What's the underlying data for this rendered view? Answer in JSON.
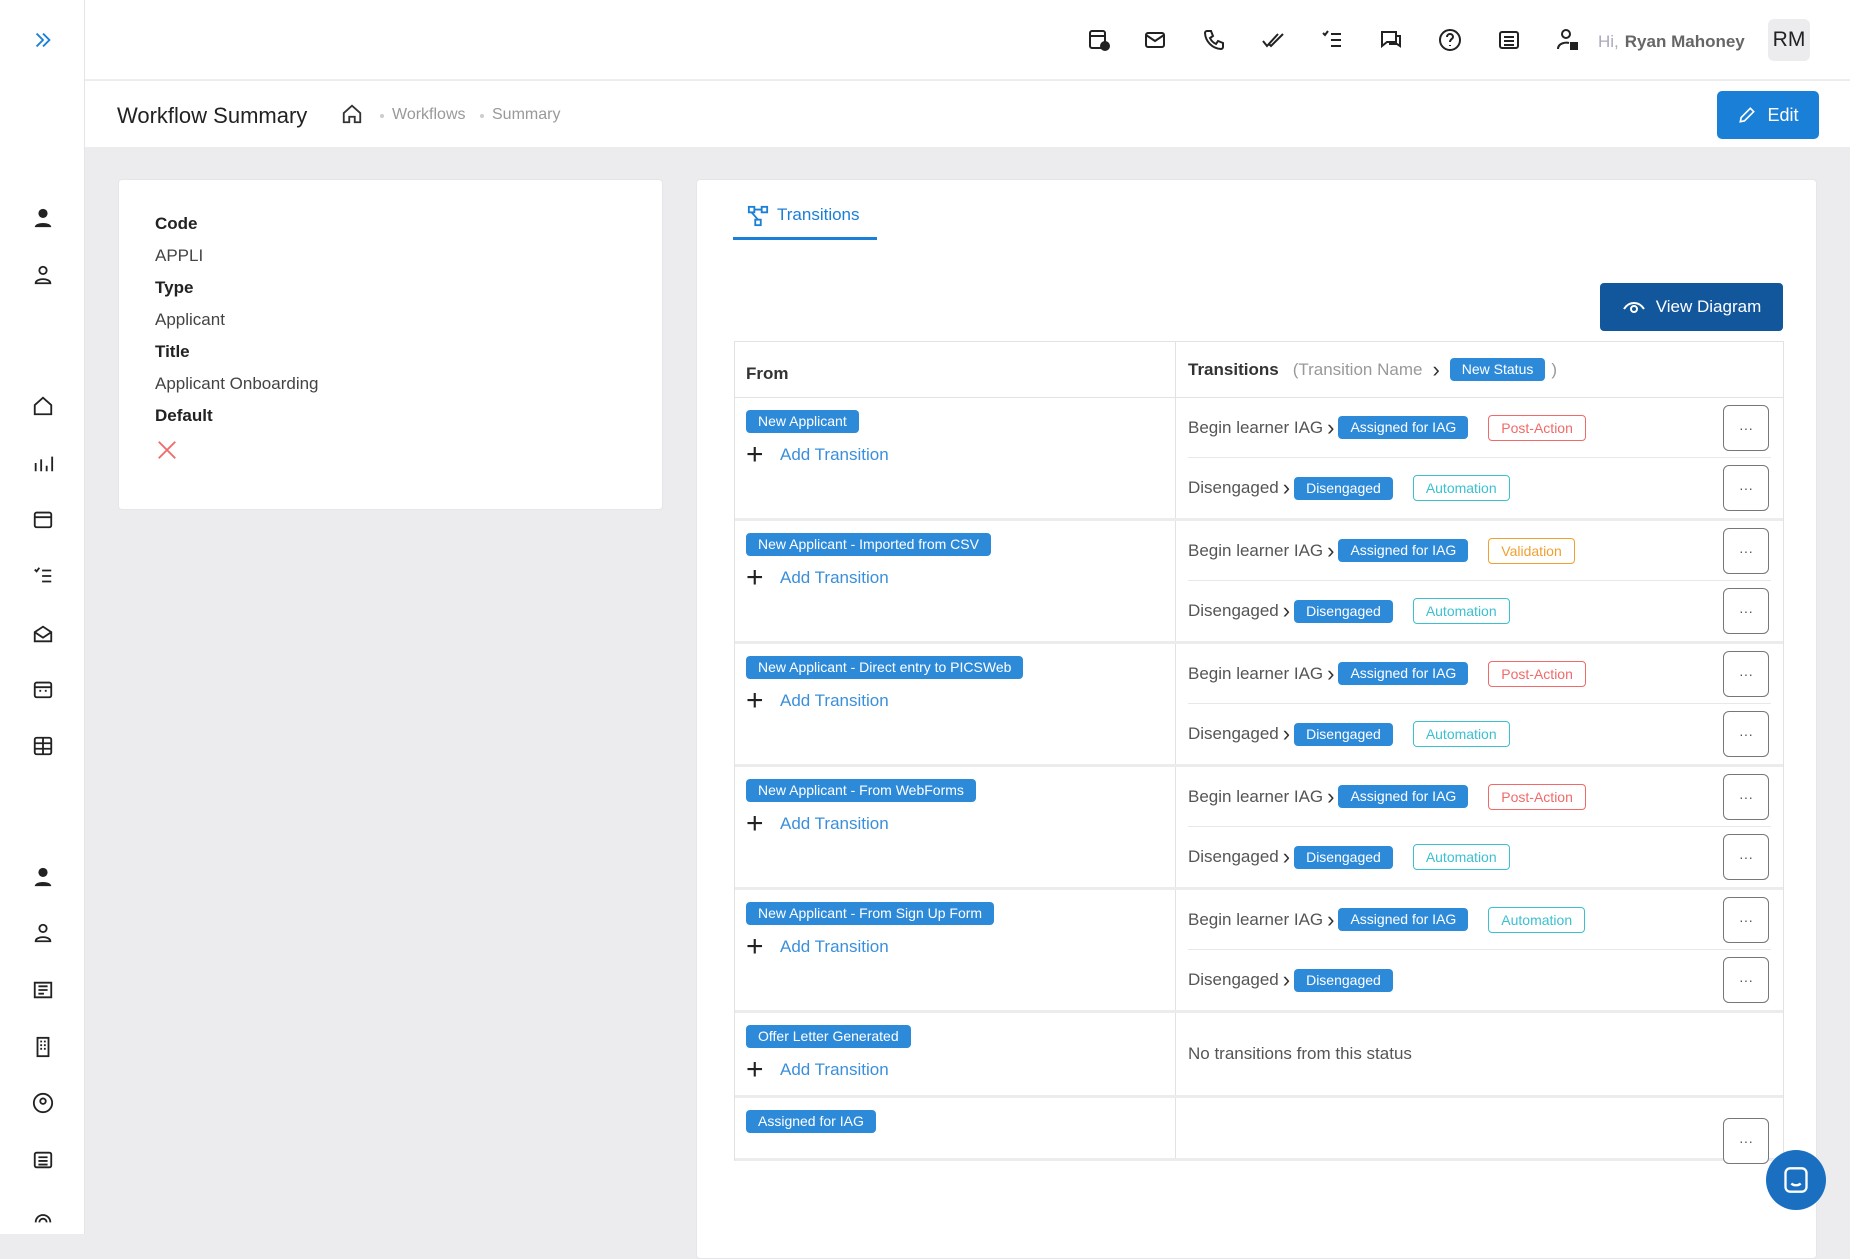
{
  "header": {
    "greeting": "Hi,",
    "user_name": "Ryan Mahoney",
    "avatar_initials": "RM",
    "icons": [
      "calendar-add-icon",
      "mail-icon",
      "phone-icon",
      "double-check-icon",
      "checklist-icon",
      "chat-icon",
      "help-icon",
      "news-icon",
      "user-lock-icon"
    ]
  },
  "page": {
    "title": "Workflow Summary",
    "breadcrumb": [
      "Workflows",
      "Summary"
    ],
    "edit_label": "Edit"
  },
  "details": {
    "code_label": "Code",
    "code": "APPLI",
    "type_label": "Type",
    "type": "Applicant",
    "title_label": "Title",
    "title": "Applicant Onboarding",
    "default_label": "Default",
    "default_value": false
  },
  "transitions_tab": {
    "label": "Transitions",
    "view_diagram": "View Diagram",
    "col_from": "From",
    "col_transitions": "Transitions",
    "legend_name": "(Transition Name",
    "legend_status": "New Status",
    "legend_close": ")",
    "add_label": "Add Transition",
    "none_label": "No transitions from this status",
    "rows": [
      {
        "from": "New Applicant",
        "items": [
          {
            "name": "Begin learner IAG",
            "status": "Assigned for IAG",
            "tag": "Post-Action"
          },
          {
            "name": "Disengaged",
            "status": "Disengaged",
            "tag": "Automation"
          }
        ]
      },
      {
        "from": "New Applicant - Imported from CSV",
        "items": [
          {
            "name": "Begin learner IAG",
            "status": "Assigned for IAG",
            "tag": "Validation"
          },
          {
            "name": "Disengaged",
            "status": "Disengaged",
            "tag": "Automation"
          }
        ]
      },
      {
        "from": "New Applicant - Direct entry to PICSWeb",
        "items": [
          {
            "name": "Begin learner IAG",
            "status": "Assigned for IAG",
            "tag": "Post-Action"
          },
          {
            "name": "Disengaged",
            "status": "Disengaged",
            "tag": "Automation"
          }
        ]
      },
      {
        "from": "New Applicant - From WebForms",
        "items": [
          {
            "name": "Begin learner IAG",
            "status": "Assigned for IAG",
            "tag": "Post-Action"
          },
          {
            "name": "Disengaged",
            "status": "Disengaged",
            "tag": "Automation"
          }
        ]
      },
      {
        "from": "New Applicant - From Sign Up Form",
        "items": [
          {
            "name": "Begin learner IAG",
            "status": "Assigned for IAG",
            "tag": "Automation"
          },
          {
            "name": "Disengaged",
            "status": "Disengaged",
            "tag": ""
          }
        ]
      },
      {
        "from": "Offer Letter Generated",
        "items": []
      },
      {
        "from": "Assigned for IAG",
        "items": [
          {
            "name": "",
            "status": "",
            "tag": ""
          }
        ]
      }
    ]
  },
  "colors": {
    "primary": "#1a7fd6",
    "pill": "#2d8ad9",
    "post_action": "#f06a6a",
    "automation": "#3cc0d0",
    "validation": "#f0a030",
    "dark_button": "#12579c"
  }
}
